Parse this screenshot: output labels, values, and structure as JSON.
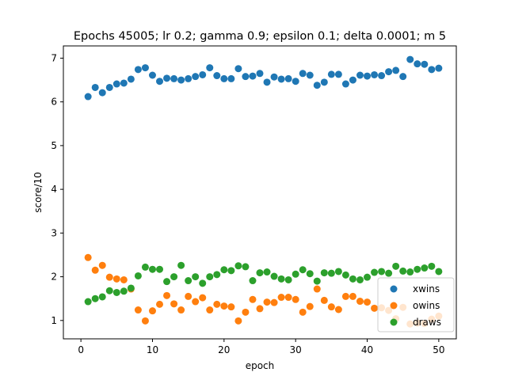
{
  "chart_data": {
    "type": "scatter",
    "title": "Epochs 45005; lr 0.2; gamma 0.9; epsilon 0.1; delta 0.0001; m 5",
    "xlabel": "epoch",
    "ylabel": "score/10",
    "xlim": [
      -2.45,
      52.45
    ],
    "ylim": [
      0.58,
      7.28
    ],
    "xticks": [
      0,
      10,
      20,
      30,
      40,
      50
    ],
    "yticks": [
      1,
      2,
      3,
      4,
      5,
      6,
      7
    ],
    "grid": false,
    "legend_position": "lower-right",
    "x": [
      1,
      2,
      3,
      4,
      5,
      6,
      7,
      8,
      9,
      10,
      11,
      12,
      13,
      14,
      15,
      16,
      17,
      18,
      19,
      20,
      21,
      22,
      23,
      24,
      25,
      26,
      27,
      28,
      29,
      30,
      31,
      32,
      33,
      34,
      35,
      36,
      37,
      38,
      39,
      40,
      41,
      42,
      43,
      44,
      45,
      46,
      47,
      48,
      49,
      50
    ],
    "series": [
      {
        "name": "xwins",
        "color": "#1f77b4",
        "values": [
          6.12,
          6.33,
          6.21,
          6.33,
          6.41,
          6.43,
          6.52,
          6.74,
          6.78,
          6.61,
          6.47,
          6.54,
          6.53,
          6.5,
          6.53,
          6.58,
          6.62,
          6.78,
          6.6,
          6.53,
          6.53,
          6.76,
          6.58,
          6.59,
          6.65,
          6.45,
          6.57,
          6.52,
          6.53,
          6.47,
          6.65,
          6.61,
          6.38,
          6.45,
          6.63,
          6.63,
          6.41,
          6.5,
          6.61,
          6.59,
          6.62,
          6.6,
          6.69,
          6.72,
          6.58,
          6.97,
          6.87,
          6.86,
          6.74,
          6.77
        ]
      },
      {
        "name": "owins",
        "color": "#ff7f0e",
        "values": [
          2.44,
          2.15,
          2.26,
          1.99,
          1.95,
          1.93,
          1.72,
          1.24,
          0.99,
          1.22,
          1.37,
          1.57,
          1.38,
          1.24,
          1.55,
          1.43,
          1.52,
          1.24,
          1.37,
          1.33,
          1.31,
          0.99,
          1.19,
          1.48,
          1.27,
          1.42,
          1.41,
          1.53,
          1.53,
          1.48,
          1.19,
          1.32,
          1.72,
          1.46,
          1.31,
          1.25,
          1.55,
          1.55,
          1.44,
          1.42,
          1.28,
          1.29,
          1.23,
          1.04,
          1.3,
          0.92,
          0.94,
          0.93,
          1.03,
          1.1
        ]
      },
      {
        "name": "draws",
        "color": "#2ca02c",
        "values": [
          1.43,
          1.5,
          1.54,
          1.68,
          1.64,
          1.67,
          1.74,
          2.02,
          2.22,
          2.17,
          2.17,
          1.89,
          2.0,
          2.26,
          1.91,
          2.0,
          1.85,
          2.0,
          2.05,
          2.16,
          2.14,
          2.25,
          2.23,
          1.91,
          2.09,
          2.11,
          2.01,
          1.95,
          1.93,
          2.06,
          2.16,
          2.07,
          1.9,
          2.09,
          2.08,
          2.12,
          2.04,
          1.95,
          1.93,
          1.99,
          2.1,
          2.12,
          2.08,
          2.24,
          2.13,
          2.11,
          2.17,
          2.2,
          2.24,
          2.12
        ]
      }
    ]
  }
}
